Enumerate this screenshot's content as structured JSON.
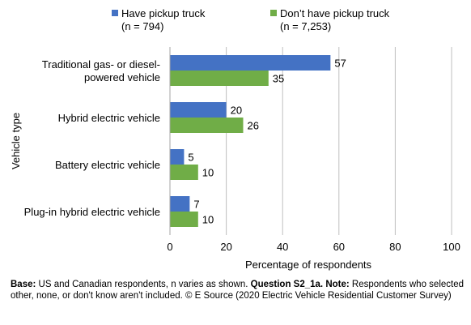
{
  "colors": {
    "series1": "#4472c4",
    "series2": "#70ad47",
    "axis": "#bfbfbf"
  },
  "legend": [
    {
      "name": "Have pickup truck",
      "n": "(n = 794)"
    },
    {
      "name": "Don’t have pickup truck",
      "n": "(n = 7,253)"
    }
  ],
  "chart_data": {
    "type": "bar",
    "orientation": "horizontal",
    "categories": [
      [
        "Traditional gas- or diesel-",
        "powered vehicle"
      ],
      [
        "Hybrid electric vehicle"
      ],
      [
        "Battery electric vehicle"
      ],
      [
        "Plug-in hybrid electric vehicle"
      ]
    ],
    "series": [
      {
        "name": "Have pickup truck",
        "values": [
          57,
          20,
          5,
          7
        ]
      },
      {
        "name": "Don’t have pickup truck",
        "values": [
          35,
          26,
          10,
          10
        ]
      }
    ],
    "xlabel": "Percentage of respondents",
    "ylabel": "Vehicle type",
    "xlim": [
      0,
      100
    ],
    "xticks": [
      0,
      20,
      40,
      60,
      80,
      100
    ],
    "grid": true,
    "legend_position": "top"
  },
  "footnote": {
    "base_label": "Base:",
    "base_text": " US and Canadian respondents, n varies as shown. ",
    "question_label": "Question S2_1a.",
    "note_label": " Note:",
    "note_text": " Respondents who selected other, none, or don't know aren't included. © E Source (2020 Electric Vehicle Residential Customer Survey)"
  }
}
